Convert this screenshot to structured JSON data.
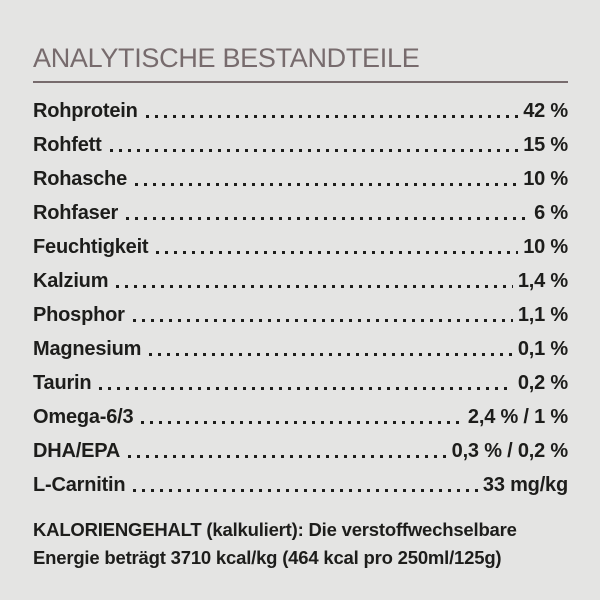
{
  "theme": {
    "bg": "#e4e4e3",
    "text": "#1d1d1b",
    "accent": "#776b6d"
  },
  "section": {
    "title": "ANALYTISCHE BESTANDTEILE",
    "rows": [
      {
        "label": "Rohprotein",
        "value": "42 %"
      },
      {
        "label": "Rohfett",
        "value": "15 %"
      },
      {
        "label": "Rohasche",
        "value": "10 %"
      },
      {
        "label": "Rohfaser",
        "value": "6 %"
      },
      {
        "label": "Feuchtigkeit",
        "value": "10 %"
      },
      {
        "label": "Kalzium",
        "value": "1,4 %"
      },
      {
        "label": "Phosphor",
        "value": "1,1 %"
      },
      {
        "label": "Magnesium",
        "value": "0,1 %"
      },
      {
        "label": "Taurin",
        "value": "0,2 %"
      },
      {
        "label": "Omega-6/3",
        "value": "2,4 % / 1 %"
      },
      {
        "label": "DHA/EPA",
        "value": "0,3 % / 0,2 %"
      },
      {
        "label": "L-Carnitin",
        "value": "33 mg/kg"
      }
    ],
    "footer_lines": [
      "KALORIENGEHALT (kalkuliert): Die verstoffwechselbare",
      "Energie beträgt 3710 kcal/kg (464 kcal pro 250ml/125g)"
    ]
  }
}
